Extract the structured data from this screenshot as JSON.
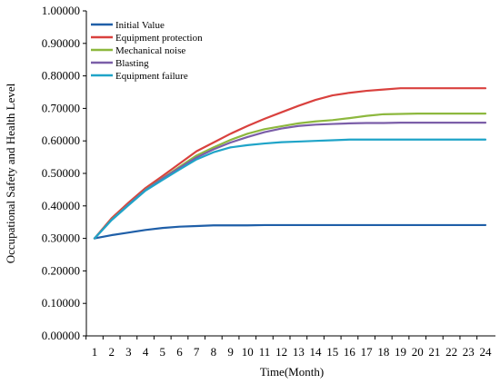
{
  "chart_data": {
    "type": "line",
    "title": "",
    "xlabel": "Time(Month)",
    "ylabel": "Occupational Safety and Health Level",
    "ylim": [
      0,
      1
    ],
    "yticks": [
      "0.00000",
      "0.10000",
      "0.20000",
      "0.30000",
      "0.40000",
      "0.50000",
      "0.60000",
      "0.70000",
      "0.80000",
      "0.90000",
      "1.00000"
    ],
    "x": [
      1,
      2,
      3,
      4,
      5,
      6,
      7,
      8,
      9,
      10,
      11,
      12,
      13,
      14,
      15,
      16,
      17,
      18,
      19,
      20,
      21,
      22,
      23,
      24
    ],
    "legend_position": "top-left",
    "grid": false,
    "series": [
      {
        "name": "Initial Value",
        "color": "#1f5fa8",
        "values": [
          0.3,
          0.31,
          0.318,
          0.326,
          0.332,
          0.336,
          0.338,
          0.34,
          0.34,
          0.34,
          0.341,
          0.341,
          0.341,
          0.341,
          0.341,
          0.341,
          0.341,
          0.341,
          0.341,
          0.341,
          0.341,
          0.341,
          0.341,
          0.341
        ]
      },
      {
        "name": "Equipment protection",
        "color": "#d9413e",
        "values": [
          0.3,
          0.362,
          0.41,
          0.455,
          0.492,
          0.53,
          0.568,
          0.595,
          0.622,
          0.646,
          0.668,
          0.688,
          0.708,
          0.726,
          0.74,
          0.748,
          0.754,
          0.758,
          0.762,
          0.762,
          0.762,
          0.762,
          0.762,
          0.762
        ]
      },
      {
        "name": "Mechanical noise",
        "color": "#8db83e",
        "values": [
          0.3,
          0.358,
          0.405,
          0.45,
          0.485,
          0.52,
          0.555,
          0.58,
          0.603,
          0.622,
          0.636,
          0.645,
          0.654,
          0.66,
          0.664,
          0.67,
          0.677,
          0.682,
          0.683,
          0.684,
          0.684,
          0.684,
          0.684,
          0.684
        ]
      },
      {
        "name": "Blasting",
        "color": "#7b5ea8",
        "values": [
          0.3,
          0.357,
          0.404,
          0.449,
          0.484,
          0.517,
          0.549,
          0.574,
          0.595,
          0.612,
          0.627,
          0.638,
          0.646,
          0.65,
          0.652,
          0.654,
          0.655,
          0.655,
          0.656,
          0.656,
          0.656,
          0.656,
          0.656,
          0.656
        ]
      },
      {
        "name": "Equipment failure",
        "color": "#1fa4c8",
        "values": [
          0.3,
          0.356,
          0.402,
          0.447,
          0.48,
          0.512,
          0.543,
          0.565,
          0.58,
          0.587,
          0.592,
          0.596,
          0.598,
          0.6,
          0.602,
          0.604,
          0.604,
          0.604,
          0.604,
          0.604,
          0.604,
          0.604,
          0.604,
          0.604
        ]
      }
    ]
  }
}
